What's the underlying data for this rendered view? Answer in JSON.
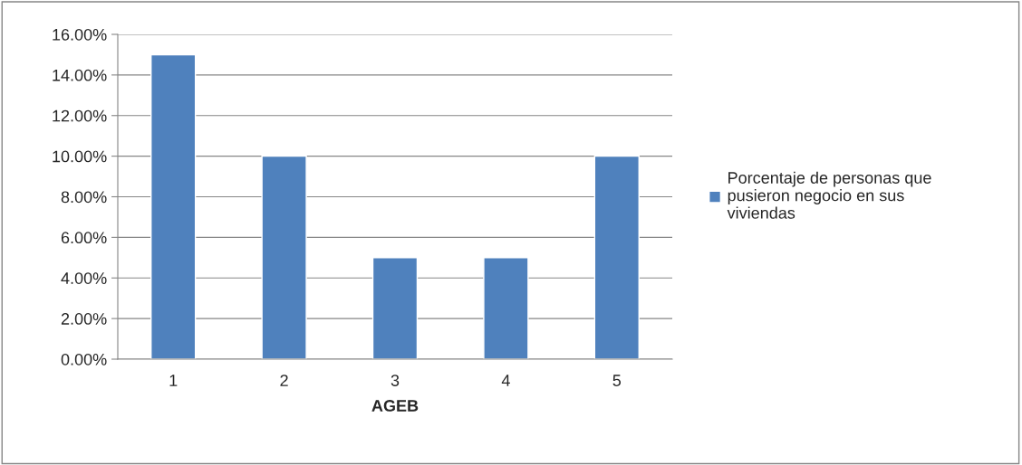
{
  "chart_data": {
    "type": "bar",
    "xlabel": "AGEB",
    "categories": [
      "1",
      "2",
      "3",
      "4",
      "5"
    ],
    "series": [
      {
        "name": "Porcentaje de personas que pusieron negocio en sus viviendas",
        "color": "#4f81bd",
        "values": [
          15,
          10,
          5,
          5,
          10
        ]
      }
    ],
    "ylim": [
      0,
      16
    ],
    "yticks": [
      {
        "value": 0,
        "label": "0.00%"
      },
      {
        "value": 2,
        "label": "2.00%"
      },
      {
        "value": 4,
        "label": "4.00%"
      },
      {
        "value": 6,
        "label": "6.00%"
      },
      {
        "value": 8,
        "label": "8.00%"
      },
      {
        "value": 10,
        "label": "10.00%"
      },
      {
        "value": 12,
        "label": "12.00%"
      },
      {
        "value": 14,
        "label": "14.00%"
      },
      {
        "value": 16,
        "label": "16.00%"
      }
    ],
    "grid": "y",
    "legend": "right"
  }
}
